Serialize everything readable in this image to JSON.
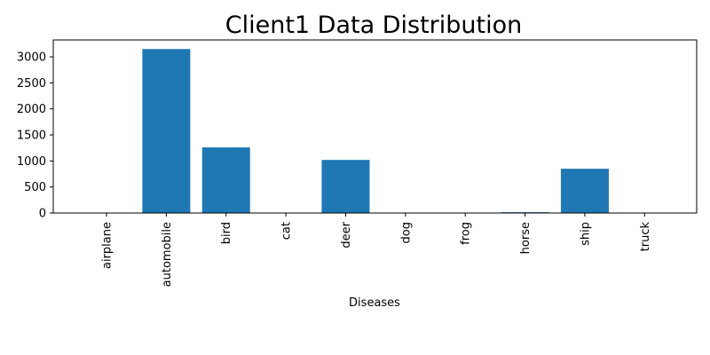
{
  "chart_data": {
    "type": "bar",
    "title": "Client1 Data Distribution",
    "xlabel": "Diseases",
    "ylabel": "",
    "categories": [
      "airplane",
      "automobile",
      "bird",
      "cat",
      "deer",
      "dog",
      "frog",
      "horse",
      "ship",
      "truck"
    ],
    "values": [
      0,
      3150,
      1260,
      0,
      1020,
      0,
      0,
      15,
      850,
      0
    ],
    "ylim": [
      0,
      3325
    ],
    "yticks": [
      0,
      500,
      1000,
      1500,
      2000,
      2500,
      3000
    ],
    "grid": false,
    "bar_color": "#1f77b4"
  }
}
